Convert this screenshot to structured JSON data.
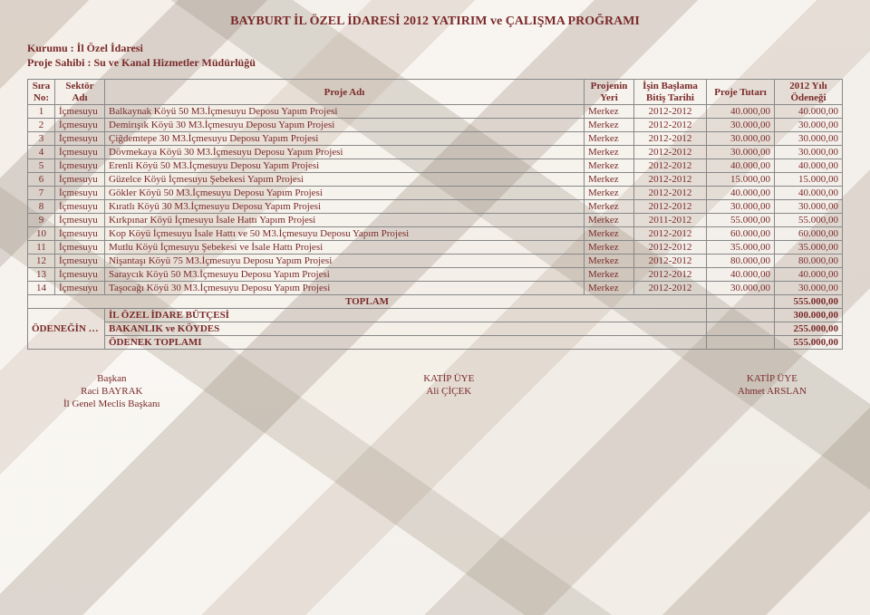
{
  "colors": {
    "text": "#7a2a2a",
    "border": "#888888",
    "bg_base": "#e7dccb"
  },
  "title": "BAYBURT İL ÖZEL İDARESİ 2012 YATIRIM ve ÇALIŞMA PROĞRAMI",
  "meta": {
    "agency_label": "Kurumu  : İl Özel İdaresi",
    "owner_label": "Proje Sahibi : Su ve Kanal Hizmetler Müdürlüğü"
  },
  "columns": {
    "no": "Sıra No:",
    "sector": "Sektör Adı",
    "name": "Proje Adı",
    "loc": "Projenin Yeri",
    "dates": "İşin Başlama Bitiş Tarihi",
    "amount": "Proje Tutarı",
    "budget": "2012 Yılı Ödeneği"
  },
  "rows": [
    {
      "no": "1",
      "sector": "İçmesuyu",
      "name": "Balkaynak Köyü 50 M3.İçmesuyu Deposu Yapım Projesi",
      "loc": "Merkez",
      "dates": "2012-2012",
      "amount": "40.000,00",
      "budget": "40.000,00"
    },
    {
      "no": "2",
      "sector": "İçmesuyu",
      "name": "Demirışık Köyü 30 M3.İçmesuyu Deposu Yapım Projesi",
      "loc": "Merkez",
      "dates": "2012-2012",
      "amount": "30.000,00",
      "budget": "30.000,00"
    },
    {
      "no": "3",
      "sector": "İçmesuyu",
      "name": "Çiğdemtepe 30 M3.İçmesuyu Deposu Yapım Projesi",
      "loc": "Merkez",
      "dates": "2012-2012",
      "amount": "30.000,00",
      "budget": "30.000,00"
    },
    {
      "no": "4",
      "sector": "İçmesuyu",
      "name": "Dövmekaya Köyü 30 M3.İçmesuyu Deposu Yapım Projesi",
      "loc": "Merkez",
      "dates": "2012-2012",
      "amount": "30.000,00",
      "budget": "30.000,00"
    },
    {
      "no": "5",
      "sector": "İçmesuyu",
      "name": "Erenli Köyü 50 M3.İçmesuyu Deposu Yapım Projesi",
      "loc": "Merkez",
      "dates": "2012-2012",
      "amount": "40.000,00",
      "budget": "40.000,00"
    },
    {
      "no": "6",
      "sector": "İçmesuyu",
      "name": "Güzelce Köyü İçmesuyu Şebekesi Yapım Projesi",
      "loc": "Merkez",
      "dates": "2012-2012",
      "amount": "15.000,00",
      "budget": "15.000,00"
    },
    {
      "no": "7",
      "sector": "İçmesuyu",
      "name": "Gökler Köyü 50 M3.İçmesuyu Deposu Yapım Projesi",
      "loc": "Merkez",
      "dates": "2012-2012",
      "amount": "40.000,00",
      "budget": "40.000,00"
    },
    {
      "no": "8",
      "sector": "İçmesuyu",
      "name": "Kıratlı Köyü 30 M3.İçmesuyu Deposu Yapım Projesi",
      "loc": "Merkez",
      "dates": "2012-2012",
      "amount": "30.000,00",
      "budget": "30.000,00"
    },
    {
      "no": "9",
      "sector": "İçmesuyu",
      "name": "Kırkpınar Köyü İçmesuyu İsale Hattı Yapım Projesi",
      "loc": "Merkez",
      "dates": "2011-2012",
      "amount": "55.000,00",
      "budget": "55.000,00"
    },
    {
      "no": "10",
      "sector": "İçmesuyu",
      "name": "Kop Köyü İçmesuyu İsale Hattı ve 50 M3.İçmesuyu Deposu Yapım Projesi",
      "loc": "Merkez",
      "dates": "2012-2012",
      "amount": "60.000,00",
      "budget": "60.000,00"
    },
    {
      "no": "11",
      "sector": "İçmesuyu",
      "name": "Mutlu Köyü İçmesuyu Şebekesi ve İsale Hattı Projesi",
      "loc": "Merkez",
      "dates": "2012-2012",
      "amount": "35.000,00",
      "budget": "35.000,00"
    },
    {
      "no": "12",
      "sector": "İçmesuyu",
      "name": "Nişantaşı Köyü 75 M3.İçmesuyu Deposu Yapım Projesi",
      "loc": "Merkez",
      "dates": "2012-2012",
      "amount": "80.000,00",
      "budget": "80.000,00"
    },
    {
      "no": "13",
      "sector": "İçmesuyu",
      "name": "Saraycık Köyü 50 M3.İçmesuyu Deposu Yapım Projesi",
      "loc": "Merkez",
      "dates": "2012-2012",
      "amount": "40.000,00",
      "budget": "40.000,00"
    },
    {
      "no": "14",
      "sector": "İçmesuyu",
      "name": "Taşocağı Köyü 30 M3.İçmesuyu Deposu Yapım Projesi",
      "loc": "Merkez",
      "dates": "2012-2012",
      "amount": "30.000,00",
      "budget": "30.000,00"
    }
  ],
  "totals": {
    "total_label": "TOPLAM",
    "total_value": "555.000,00",
    "alloc_label": "ÖDENEĞİN DAĞILIMI",
    "line1_label": "İL ÖZEL İDARE BÜTÇESİ",
    "line1_value": "300.000,00",
    "line2_label": "BAKANLIK ve KÖYDES",
    "line2_value": "255.000,00",
    "line3_label": "ÖDENEK TOPLAMI",
    "line3_value": "555.000,00"
  },
  "signatures": {
    "left_role": "Başkan",
    "left_name": "Raci BAYRAK",
    "left_title": "İl Genel Meclis Başkanı",
    "mid_role": "KATİP ÜYE",
    "mid_name": "Ali ÇİÇEK",
    "right_role": "KATİP ÜYE",
    "right_name": "Ahmet ARSLAN"
  }
}
